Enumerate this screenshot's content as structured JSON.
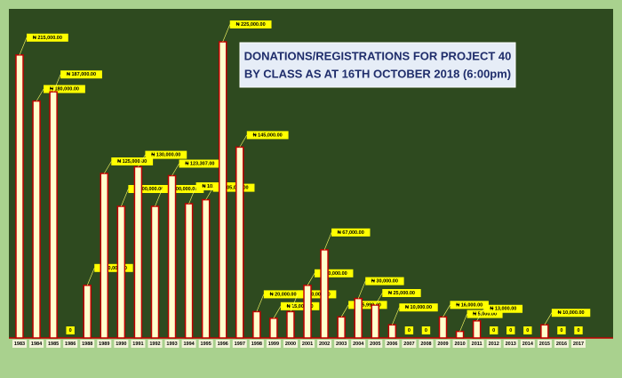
{
  "chart_data": {
    "type": "bar",
    "title": [
      "DONATIONS/REGISTRATIONS  FOR PROJECT 40",
      "BY CLASS AS AT 16TH OCTOBER 2018 (6:00pm)"
    ],
    "categories": [
      "1983",
      "1984",
      "1985",
      "1986",
      "1988",
      "1989",
      "1990",
      "1991",
      "1992",
      "1993",
      "1994",
      "1995",
      "1996",
      "1997",
      "1998",
      "1999",
      "2000",
      "2001",
      "2002",
      "2003",
      "2004",
      "2005",
      "2006",
      "2007",
      "2008",
      "2009",
      "2010",
      "2011",
      "2012",
      "2013",
      "2014",
      "2015",
      "2016",
      "2017"
    ],
    "values": [
      215000,
      180000,
      187000,
      0,
      40000,
      125000,
      100000,
      130000,
      100000,
      123307,
      102000,
      105000,
      225000,
      145000,
      20000,
      15000,
      20000,
      40000,
      67000,
      15990,
      30000,
      25000,
      10000,
      0,
      0,
      16000,
      5000,
      13000,
      0,
      0,
      0,
      10000,
      0,
      0
    ],
    "value_labels": [
      "₦ 215,000.00",
      "₦ 180,000.00",
      "₦ 187,000.00",
      "0",
      "₦ 40,000.00",
      "₦ 125,000.00",
      "₦ 100,000.00",
      "₦ 130,000.00",
      "₦ 100,000.00",
      "₦ 123,307.00",
      "₦ 102,000.00",
      "₦ 105,000.00",
      "₦ 225,000.00",
      "₦ 145,000.00",
      "₦ 20,000.00",
      "₦ 15,000.00",
      "₦ 20,000.00",
      "₦ 40,000.00",
      "₦ 67,000.00",
      "₦ 15,990.00",
      "₦ 30,000.00",
      "₦ 25,000.00",
      "₦ 10,000.00",
      "0",
      "0",
      "₦ 16,000.00",
      "₦ 5,000.00",
      "₦ 13,000.00",
      "0",
      "0",
      "0",
      "₦ 10,000.00",
      "0",
      "0"
    ],
    "color": "#ffffcc",
    "edgecolor": "#c00000"
  }
}
